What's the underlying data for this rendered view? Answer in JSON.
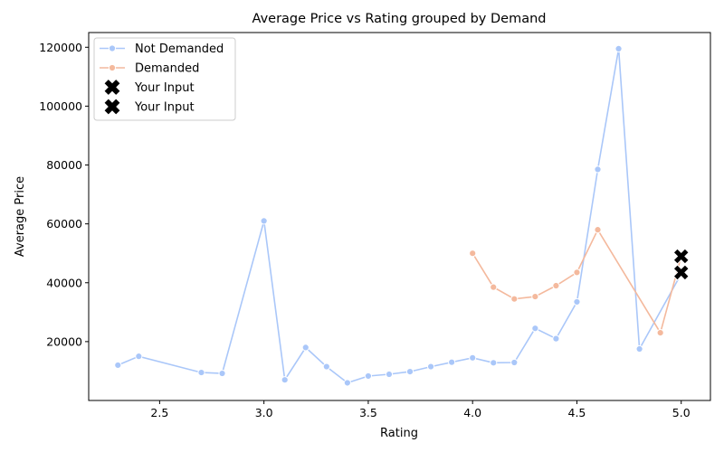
{
  "chart_data": {
    "type": "line",
    "title": "Average Price vs Rating grouped by Demand",
    "xlabel": "Rating",
    "ylabel": "Average Price",
    "xlim": [
      2.16,
      5.14
    ],
    "ylim": [
      0,
      125000
    ],
    "xticks": [
      2.5,
      3.0,
      3.5,
      4.0,
      4.5,
      5.0
    ],
    "xtick_labels": [
      "2.5",
      "3.0",
      "3.5",
      "4.0",
      "4.5",
      "5.0"
    ],
    "yticks": [
      20000,
      40000,
      60000,
      80000,
      100000,
      120000
    ],
    "ytick_labels": [
      "20000",
      "40000",
      "60000",
      "80000",
      "100000",
      "120000"
    ],
    "grid": false,
    "legend_position": "top-left",
    "series": [
      {
        "name": "Not Demanded",
        "color": "#aac7f9",
        "marker": "circle",
        "x": [
          2.3,
          2.4,
          2.7,
          2.8,
          3.0,
          3.1,
          3.2,
          3.3,
          3.4,
          3.5,
          3.6,
          3.7,
          3.8,
          3.9,
          4.0,
          4.1,
          4.2,
          4.3,
          4.4,
          4.5,
          4.6,
          4.7,
          4.8,
          5.0
        ],
        "y": [
          12000,
          15000,
          9500,
          9200,
          61000,
          7000,
          18000,
          11500,
          6000,
          8300,
          8900,
          9800,
          11500,
          13000,
          14500,
          12800,
          12900,
          24500,
          21000,
          33500,
          78500,
          119500,
          17500,
          43000
        ]
      },
      {
        "name": "Demanded",
        "color": "#f4b99d",
        "marker": "circle",
        "x": [
          4.0,
          4.1,
          4.2,
          4.3,
          4.4,
          4.5,
          4.6,
          4.9,
          5.0
        ],
        "y": [
          50000,
          38500,
          34500,
          35300,
          39000,
          43500,
          58000,
          23000,
          49000
        ]
      }
    ],
    "markers": [
      {
        "name": "Your Input",
        "x": 5.0,
        "y": 49000,
        "symbol": "X",
        "color": "#000000"
      },
      {
        "name": "Your Input",
        "x": 5.0,
        "y": 43500,
        "symbol": "X",
        "color": "#000000"
      }
    ]
  }
}
